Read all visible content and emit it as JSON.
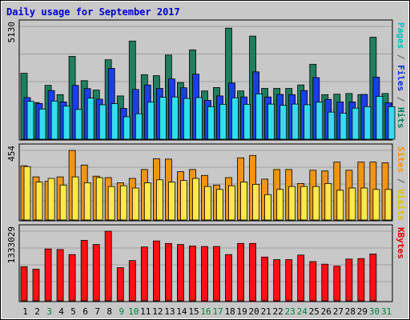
{
  "chart_data": {
    "type": "bar",
    "title": "Daily usage for September 2017",
    "days": [
      "1",
      "2",
      "3",
      "4",
      "5",
      "6",
      "7",
      "8",
      "9",
      "10",
      "11",
      "12",
      "13",
      "14",
      "15",
      "16",
      "17",
      "18",
      "19",
      "20",
      "21",
      "22",
      "23",
      "24",
      "25",
      "26",
      "27",
      "28",
      "29",
      "30",
      "31"
    ],
    "weekend_days": [
      "3",
      "9",
      "10",
      "16",
      "17",
      "23",
      "24",
      "30",
      "31"
    ],
    "panels": [
      {
        "id": "hits",
        "max_label": "5130",
        "ymax": 5130,
        "right_label": [
          {
            "text": "Pages",
            "color": "#00c0c0"
          },
          {
            "text": " / ",
            "color": "#555555"
          },
          {
            "text": "Files",
            "color": "#0030e0"
          },
          {
            "text": " / ",
            "color": "#555555"
          },
          {
            "text": "Hits",
            "color": "#008060"
          }
        ],
        "series": [
          {
            "name": "Hits",
            "color": "#1e7f5f",
            "values": [
              2950,
              1590,
              2390,
              1960,
              3740,
              2610,
              2170,
              3580,
              1900,
              4450,
              2890,
              2840,
              3800,
              2520,
              4040,
              2130,
              2290,
              5050,
              2130,
              4680,
              2250,
              2250,
              2250,
              2410,
              3370,
              1960,
              1980,
              2010,
              1960,
              4630,
              2010
            ]
          },
          {
            "name": "Files",
            "color": "#1c3eea",
            "values": [
              1820,
              1550,
              2150,
              1620,
              2390,
              2240,
              1750,
              3180,
              1320,
              2200,
              2410,
              2250,
              2690,
              2280,
              2910,
              1690,
              1900,
              2500,
              1850,
              3020,
              1850,
              1970,
              1960,
              2150,
              2750,
              1740,
              1620,
              1620,
              1970,
              2770,
              1580
            ]
          },
          {
            "name": "Pages",
            "color": "#33ddf0",
            "values": [
              1650,
              1290,
              1660,
              1430,
              1270,
              1800,
              1490,
              1540,
              930,
              1070,
              1610,
              1840,
              1850,
              1780,
              1820,
              1400,
              1510,
              1810,
              1510,
              1990,
              1520,
              1460,
              1520,
              1490,
              1610,
              1150,
              1100,
              1330,
              1400,
              1880,
              1400
            ]
          }
        ]
      },
      {
        "id": "visits",
        "max_label": "454",
        "ymax": 454,
        "right_label": [
          {
            "text": "Sites",
            "color": "#ff9000"
          },
          {
            "text": " / ",
            "color": "#555555"
          },
          {
            "text": "Visits",
            "color": "#e0c000"
          }
        ],
        "series": [
          {
            "name": "Visits",
            "color": "#f39417",
            "values": [
              350,
              275,
              245,
              275,
              454,
              355,
              280,
              270,
              235,
              265,
              325,
              398,
              395,
              310,
              325,
              285,
              220,
              270,
              404,
              420,
              260,
              325,
              325,
              230,
              320,
              315,
              375,
              320,
              375,
              375,
              370
            ]
          },
          {
            "name": "Sites",
            "color": "#ffe94a",
            "values": [
              345,
              240,
              265,
              220,
              275,
              235,
              270,
              210,
              215,
              200,
              235,
              255,
              240,
              250,
              265,
              210,
              190,
              215,
              240,
              225,
              155,
              190,
              210,
              210,
              210,
              230,
              185,
              200,
              200,
              190,
              190
            ]
          }
        ]
      },
      {
        "id": "kbytes",
        "max_label": "1333029",
        "ymax": 1333029,
        "right_label": [
          {
            "text": "KBytes",
            "color": "#e00000"
          }
        ],
        "series": [
          {
            "name": "KBytes",
            "color": "#ff1111",
            "values": [
              630000,
              580000,
              980000,
              970000,
              870000,
              1150000,
              1070000,
              1333029,
              610000,
              750000,
              1020000,
              1140000,
              1090000,
              1070000,
              1040000,
              1030000,
              1030000,
              870000,
              1090000,
              1090000,
              820000,
              770000,
              770000,
              860000,
              730000,
              680000,
              640000,
              780000,
              790000,
              880000,
              0
            ]
          }
        ]
      }
    ]
  }
}
